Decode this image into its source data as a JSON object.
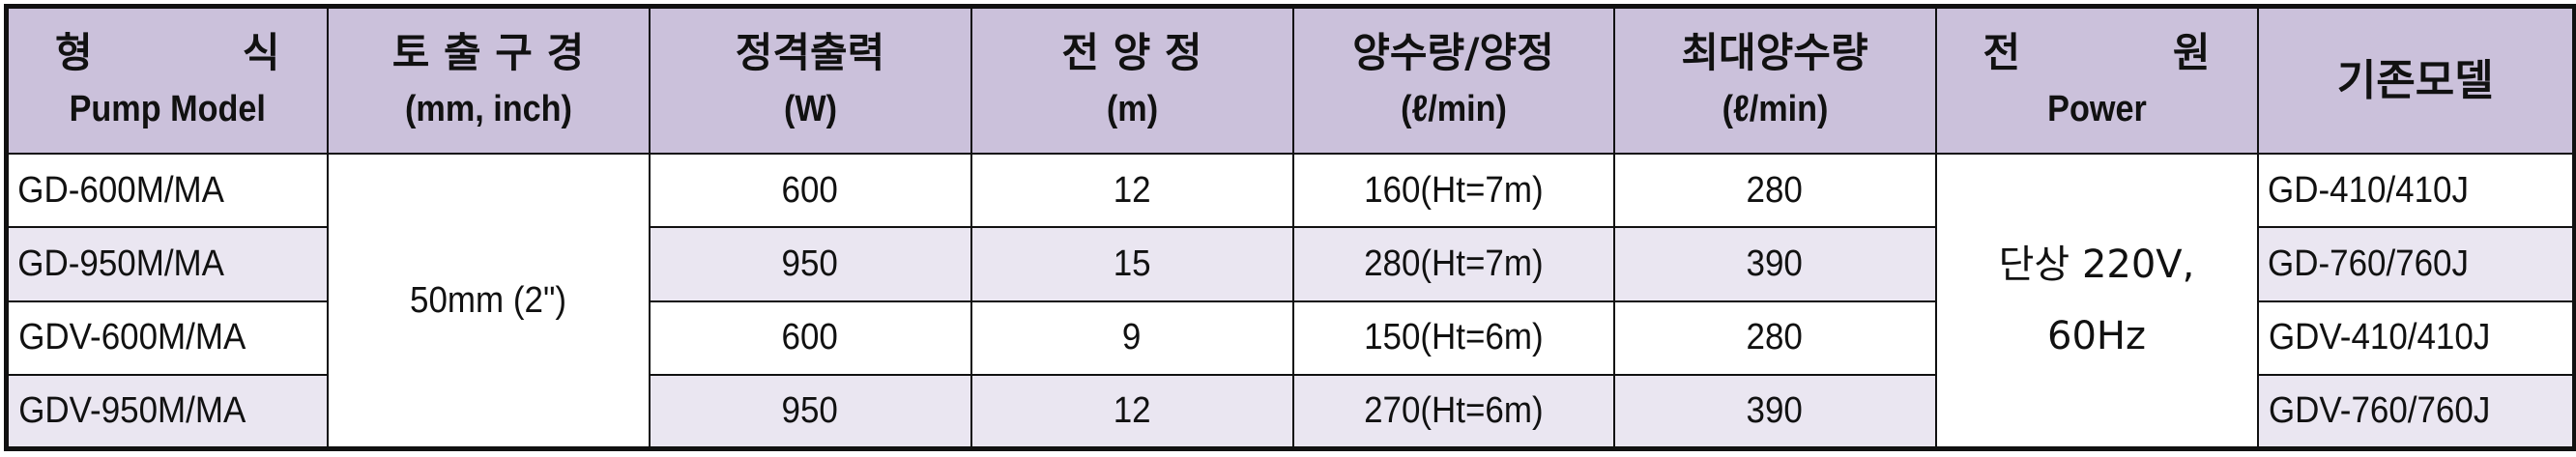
{
  "table": {
    "headers": {
      "model": {
        "ko": "형 식",
        "en": "Pump Model"
      },
      "bore": {
        "ko": "토 출 구 경",
        "en": "(mm, inch)"
      },
      "power_output": {
        "ko": "정격출력",
        "en": "(W)"
      },
      "head": {
        "ko": "전 양 정",
        "en": "(m)"
      },
      "flow": {
        "ko": "양수량/양정",
        "en": "(ℓ/min)"
      },
      "max_flow": {
        "ko": "최대양수량",
        "en": "(ℓ/min)"
      },
      "power": {
        "ko": "전 원",
        "en": "Power"
      },
      "legacy": {
        "ko": "기존모델"
      }
    },
    "bore_value": "50mm (2\")",
    "power_value": {
      "line1": "단상 220V,",
      "line2": "60Hz"
    },
    "rows": [
      {
        "model": "GD-600M/MA",
        "watts": "600",
        "head": "12",
        "flow": "160(Ht=7m)",
        "max_flow": "280",
        "legacy": "GD-410/410J"
      },
      {
        "model": "GD-950M/MA",
        "watts": "950",
        "head": "15",
        "flow": "280(Ht=7m)",
        "max_flow": "390",
        "legacy": "GD-760/760J"
      },
      {
        "model": "GDV-600M/MA",
        "watts": "600",
        "head": "9",
        "flow": "150(Ht=6m)",
        "max_flow": "280",
        "legacy": "GDV-410/410J"
      },
      {
        "model": "GDV-950M/MA",
        "watts": "950",
        "head": "12",
        "flow": "270(Ht=6m)",
        "max_flow": "390",
        "legacy": "GDV-760/760J"
      }
    ]
  },
  "colors": {
    "header_bg": "#cbc1db",
    "stripe_bg": "#eae6f1",
    "border": "#111111"
  }
}
